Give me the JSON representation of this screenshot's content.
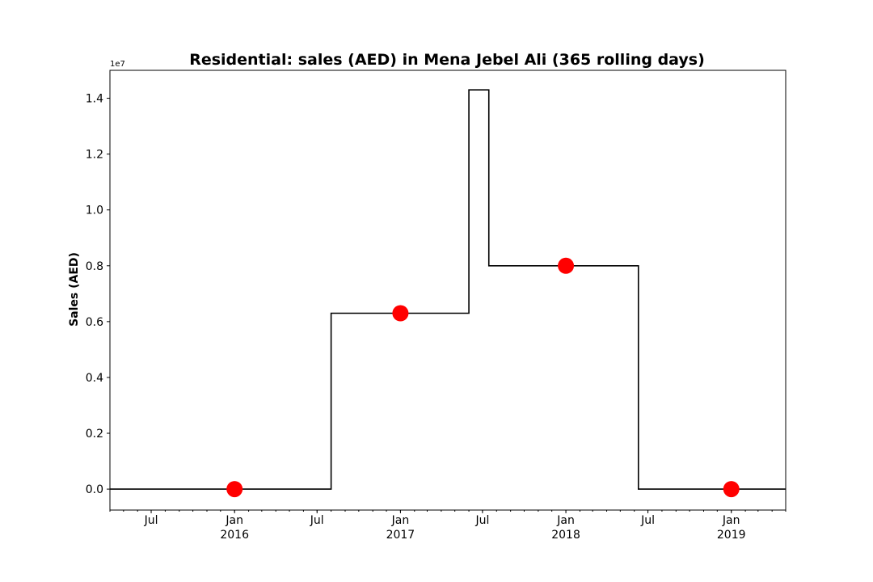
{
  "chart_data": {
    "type": "line",
    "title": "Residential: sales (AED) in Mena Jebel Ali (365 rolling days)",
    "xlabel": "",
    "ylabel": "Sales (AED)",
    "y_offset_label": "1e7",
    "line_style": "step",
    "line_color": "#000000",
    "marker_color": "#ff0000",
    "grid": false,
    "xlim": [
      "2015-04-01",
      "2019-05-01"
    ],
    "ylim": [
      -0.075,
      1.5
    ],
    "x_ticks": [
      {
        "date": "2015-07-01",
        "label": "Jul",
        "year": ""
      },
      {
        "date": "2016-01-01",
        "label": "Jan",
        "year": "2016"
      },
      {
        "date": "2016-07-01",
        "label": "Jul",
        "year": ""
      },
      {
        "date": "2017-01-01",
        "label": "Jan",
        "year": "2017"
      },
      {
        "date": "2017-07-01",
        "label": "Jul",
        "year": ""
      },
      {
        "date": "2018-01-01",
        "label": "Jan",
        "year": "2018"
      },
      {
        "date": "2018-07-01",
        "label": "Jul",
        "year": ""
      },
      {
        "date": "2019-01-01",
        "label": "Jan",
        "year": "2019"
      }
    ],
    "y_ticks": [
      {
        "value": 0.0,
        "label": "0.0"
      },
      {
        "value": 0.2,
        "label": "0.2"
      },
      {
        "value": 0.4,
        "label": "0.4"
      },
      {
        "value": 0.6,
        "label": "0.6"
      },
      {
        "value": 0.8,
        "label": "0.8"
      },
      {
        "value": 1.0,
        "label": "1.0"
      },
      {
        "value": 1.2,
        "label": "1.2"
      },
      {
        "value": 1.4,
        "label": "1.4"
      }
    ],
    "series": [
      {
        "type": "step",
        "x": [
          "2015-04-01",
          "2016-08-01",
          "2017-06-01",
          "2017-07-15",
          "2018-06-10",
          "2019-05-01"
        ],
        "y": [
          0.0,
          0.63,
          1.43,
          0.8,
          0.0,
          0.0
        ]
      },
      {
        "type": "scatter",
        "x": [
          "2016-01-01",
          "2017-01-01",
          "2018-01-01",
          "2019-01-01"
        ],
        "y": [
          0.0,
          0.63,
          0.8,
          0.0
        ]
      }
    ]
  }
}
